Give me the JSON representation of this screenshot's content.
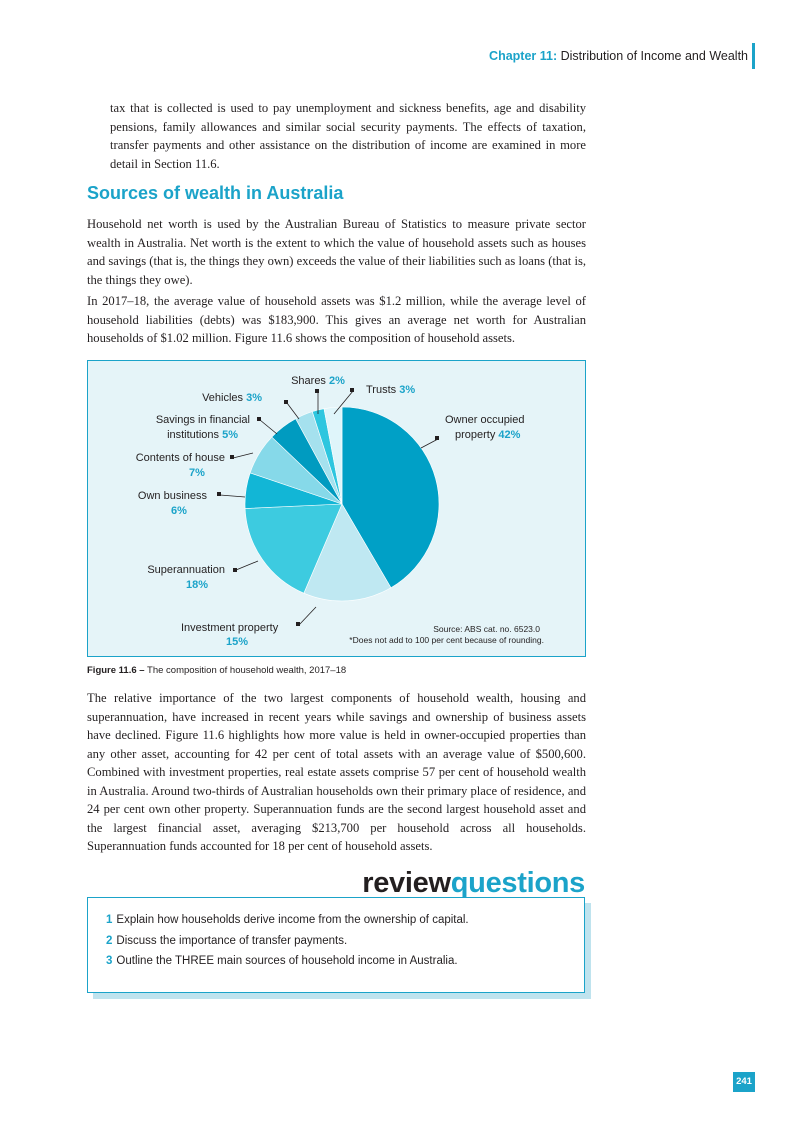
{
  "header": {
    "chapter": "Chapter 11:",
    "title": "Distribution of Income and Wealth"
  },
  "intro_paragraph": "tax that is collected is used to pay unemployment and sickness benefits, age and disability pensions, family allowances and similar social security payments. The effects of taxation, transfer payments and other assistance on the distribution of income are examined in more detail in Section 11.6.",
  "section_heading": "Sources of wealth in Australia",
  "paragraph_networth": "Household net worth is used by the Australian Bureau of Statistics to measure private sector wealth in Australia. Net worth is the extent to which the value of household assets such as houses and savings (that is, the things they own) exceeds the value of their liabilities such as loans (that is, the things they owe).",
  "paragraph_averages": "In 2017–18, the average value of household assets was $1.2 million, while the average level of household liabilities (debts) was $183,900. This gives an average net worth for Australian households of $1.02 million. Figure 11.6 shows the composition of household assets.",
  "chart_data": {
    "type": "pie",
    "slices": [
      {
        "name": "Owner occupied property",
        "line1": "Owner occupied",
        "line2": "property",
        "pct_label": "42%",
        "value": 42,
        "color": "#00a0c6"
      },
      {
        "name": "Investment property",
        "line1": "Investment property",
        "line2": "",
        "pct_label": "15%",
        "value": 15,
        "color": "#bfe8f2"
      },
      {
        "name": "Superannuation",
        "line1": "Superannuation",
        "line2": "",
        "pct_label": "18%",
        "value": 18,
        "color": "#3dcbe0"
      },
      {
        "name": "Own business",
        "line1": "Own business",
        "line2": "",
        "pct_label": "6%",
        "value": 6,
        "color": "#12b6d6"
      },
      {
        "name": "Contents of house",
        "line1": "Contents of house",
        "line2": "",
        "pct_label": "7%",
        "value": 7,
        "color": "#86d9e9"
      },
      {
        "name": "Savings in financial institutions",
        "line1": "Savings in financial",
        "line2": "institutions",
        "pct_label": "5%",
        "value": 5,
        "color": "#009bc0"
      },
      {
        "name": "Vehicles",
        "line1": "Vehicles",
        "line2": "",
        "pct_label": "3%",
        "value": 3,
        "color": "#a5e1ee"
      },
      {
        "name": "Shares",
        "line1": "Shares",
        "line2": "",
        "pct_label": "2%",
        "value": 2,
        "color": "#2ec6df"
      },
      {
        "name": "Trusts",
        "line1": "Trusts",
        "line2": "",
        "pct_label": "3%",
        "value": 3,
        "color": "#dff5fa"
      }
    ],
    "source": "Source: ABS cat. no. 6523.0",
    "note": "*Does not add to 100 per cent because of rounding."
  },
  "figure_caption": {
    "label": "Figure 11.6 –",
    "text": "The composition of household wealth, 2017–18"
  },
  "paragraph_importance": "The relative importance of the two largest components of household wealth, housing and superannuation, have increased in recent years while savings and ownership of business assets have declined. Figure 11.6 highlights how more value is held in owner-occupied properties than any other asset, accounting for 42 per cent of total assets with an average value of $500,600. Combined with investment properties, real estate assets comprise 57 per cent of household wealth in Australia. Around two-thirds of Australian households own their primary place of residence, and 24 per cent own other property. Superannuation funds are the second largest household asset and the largest financial asset, averaging $213,700 per household across all households. Superannuation funds accounted for 18 per cent of household assets.",
  "review": {
    "title_part1": "review",
    "title_part2": "questions",
    "questions": [
      {
        "number": "1",
        "text": "Explain how households derive income from the ownership of capital."
      },
      {
        "number": "2",
        "text": "Discuss the importance of transfer payments."
      },
      {
        "number": "3",
        "text": "Outline the THREE main sources of household income in Australia."
      }
    ]
  },
  "page_number": "241"
}
